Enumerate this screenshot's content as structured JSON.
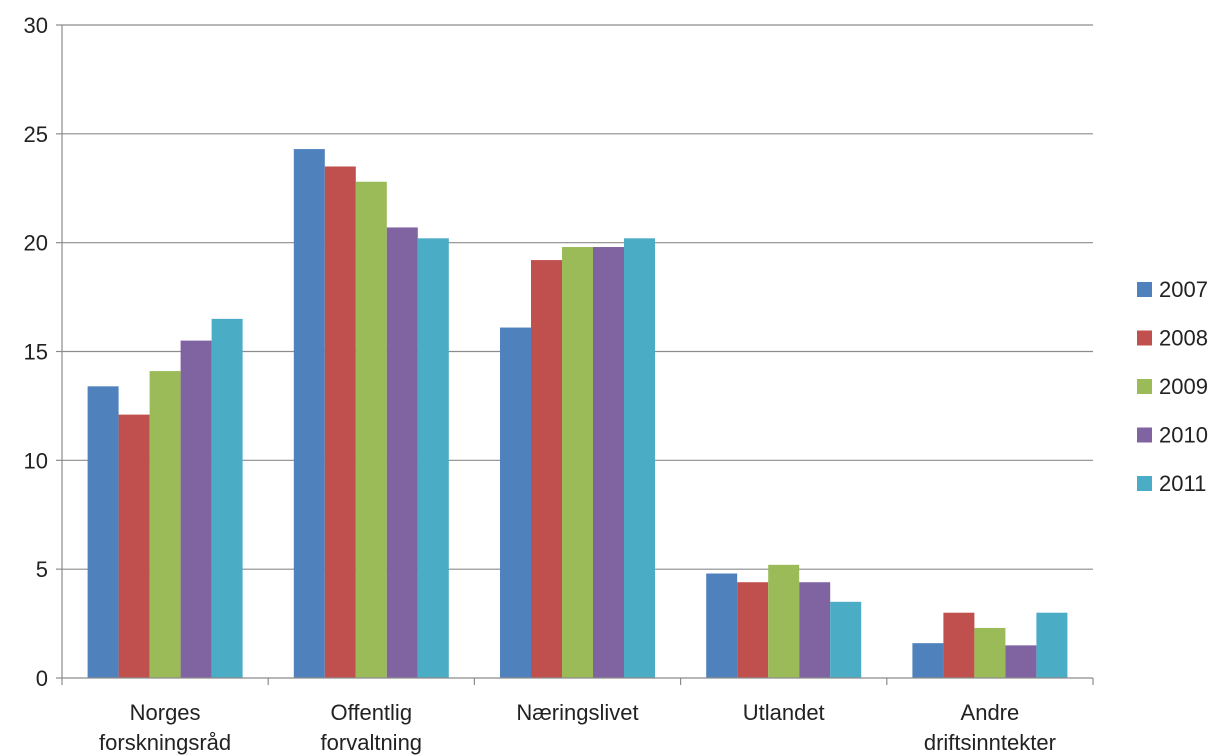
{
  "chart_data": {
    "type": "bar",
    "categories": [
      [
        "Norges",
        "forskningsråd"
      ],
      [
        "Offentlig",
        "forvaltning"
      ],
      [
        "Næringslivet"
      ],
      [
        "Utlandet"
      ],
      [
        "Andre",
        "driftsinntekter"
      ]
    ],
    "series": [
      {
        "name": "2007",
        "color": "#4F81BD",
        "values": [
          13.4,
          24.3,
          16.1,
          4.8,
          1.6
        ]
      },
      {
        "name": "2008",
        "color": "#C0504D",
        "values": [
          12.1,
          23.5,
          19.2,
          4.4,
          3.0
        ]
      },
      {
        "name": "2009",
        "color": "#9BBB59",
        "values": [
          14.1,
          22.8,
          19.8,
          5.2,
          2.3
        ]
      },
      {
        "name": "2010",
        "color": "#8064A2",
        "values": [
          15.5,
          20.7,
          19.8,
          4.4,
          1.5
        ]
      },
      {
        "name": "2011",
        "color": "#4BACC6",
        "values": [
          16.5,
          20.2,
          20.2,
          3.5,
          3.0
        ]
      }
    ],
    "yticks": [
      0,
      5,
      10,
      15,
      20,
      25,
      30
    ],
    "ylim": [
      0,
      30
    ],
    "grid": true,
    "legend": "right",
    "title": "",
    "xlabel": "",
    "ylabel": ""
  }
}
